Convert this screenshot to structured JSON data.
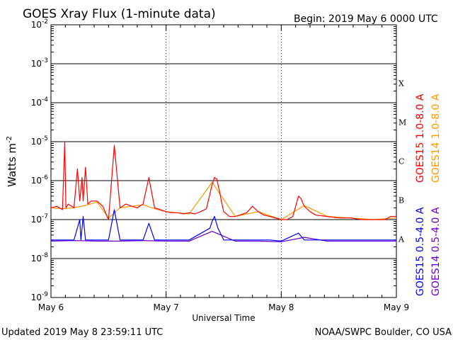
{
  "chart_data": {
    "type": "line",
    "title": "GOES Xray Flux (1-minute data)",
    "begin_label": "Begin:  2019 May 6 0000 UTC",
    "xlabel": "Universal Time",
    "ylabel": "Watts m",
    "ylabel_exp": "-2",
    "x_ticks": [
      "May 6",
      "May 7",
      "May 8",
      "May 9"
    ],
    "y_ticks": [
      {
        "base": "10",
        "exp": "-2"
      },
      {
        "base": "10",
        "exp": "-3"
      },
      {
        "base": "10",
        "exp": "-4"
      },
      {
        "base": "10",
        "exp": "-5"
      },
      {
        "base": "10",
        "exp": "-6"
      },
      {
        "base": "10",
        "exp": "-7"
      },
      {
        "base": "10",
        "exp": "-8"
      },
      {
        "base": "10",
        "exp": "-9"
      }
    ],
    "ylim": [
      1e-09,
      0.01
    ],
    "yscale": "log",
    "xlim_days": [
      0,
      3
    ],
    "flare_classes": [
      "X",
      "M",
      "C",
      "B",
      "A"
    ],
    "series": [
      {
        "name": "GOES15 1.0-8.0 A",
        "color": "#ff0000",
        "x": [
          0.0,
          0.05,
          0.1,
          0.12,
          0.13,
          0.15,
          0.2,
          0.23,
          0.25,
          0.27,
          0.28,
          0.3,
          0.32,
          0.35,
          0.4,
          0.45,
          0.5,
          0.55,
          0.6,
          0.65,
          0.7,
          0.75,
          0.8,
          0.85,
          0.9,
          0.95,
          1.0,
          1.05,
          1.1,
          1.15,
          1.2,
          1.25,
          1.3,
          1.35,
          1.38,
          1.4,
          1.42,
          1.44,
          1.46,
          1.48,
          1.5,
          1.55,
          1.6,
          1.7,
          1.75,
          1.8,
          1.85,
          1.9,
          2.0,
          2.05,
          2.1,
          2.15,
          2.17,
          2.2,
          2.25,
          2.3,
          2.4,
          2.5,
          2.6,
          2.7,
          2.8,
          2.85,
          2.9,
          2.95,
          3.0
        ],
        "y": [
          2e-07,
          2.2e-07,
          1.8e-07,
          1e-05,
          2e-07,
          2.5e-07,
          2e-07,
          2e-06,
          3e-07,
          1.2e-06,
          3e-07,
          2.2e-06,
          2.5e-07,
          3e-07,
          3e-07,
          2.2e-07,
          1e-07,
          8e-06,
          2e-07,
          2.5e-07,
          2.2e-07,
          2e-07,
          2.5e-07,
          1.2e-06,
          2e-07,
          1.8e-07,
          1.6e-07,
          1.5e-07,
          1.5e-07,
          1.4e-07,
          1.5e-07,
          1.4e-07,
          1.6e-07,
          1.9e-07,
          4.5e-07,
          8e-07,
          1.2e-06,
          1.1e-06,
          6e-07,
          3e-07,
          1.6e-07,
          1.2e-07,
          1.2e-07,
          1.5e-07,
          2.2e-07,
          1.6e-07,
          1.3e-07,
          1.2e-07,
          1e-07,
          1e-07,
          1.2e-07,
          4e-07,
          3.5e-07,
          2.2e-07,
          1.6e-07,
          1.3e-07,
          1.2e-07,
          1.1e-07,
          1.1e-07,
          1e-07,
          1e-07,
          1e-07,
          1e-07,
          1.2e-07,
          1.2e-07
        ]
      },
      {
        "name": "GOES14 1.0-8.0 A",
        "color": "#ff9900",
        "x": [
          0.0,
          0.1,
          0.2,
          0.3,
          0.4,
          0.5,
          0.6,
          0.7,
          0.8,
          0.9,
          1.0,
          1.2,
          1.4,
          1.6,
          1.8,
          2.0,
          2.2,
          2.4,
          2.6,
          2.8,
          3.0
        ],
        "y": [
          2e-07,
          1.9e-07,
          2e-07,
          2.3e-07,
          2.8e-07,
          1.1e-07,
          2e-07,
          2.2e-07,
          2.4e-07,
          1.9e-07,
          1.6e-07,
          1.4e-07,
          9e-07,
          1.2e-07,
          1.6e-07,
          1e-07,
          2.3e-07,
          1.2e-07,
          1.1e-07,
          1e-07,
          1.1e-07
        ]
      },
      {
        "name": "GOES15 0.5-4.0 A",
        "color": "#0000ff",
        "x": [
          0.0,
          0.1,
          0.2,
          0.25,
          0.26,
          0.28,
          0.3,
          0.35,
          0.4,
          0.5,
          0.55,
          0.6,
          0.7,
          0.8,
          0.85,
          0.9,
          1.0,
          1.2,
          1.38,
          1.4,
          1.42,
          1.45,
          1.48,
          1.5,
          1.55,
          1.7,
          1.9,
          2.0,
          2.15,
          2.2,
          2.3,
          2.5,
          2.7,
          2.9,
          3.0
        ],
        "y": [
          3e-08,
          3e-08,
          3e-08,
          1e-07,
          3e-08,
          1.2e-07,
          3e-08,
          3e-08,
          3e-08,
          3e-08,
          1.8e-07,
          3e-08,
          3e-08,
          3e-08,
          8e-08,
          3e-08,
          3e-08,
          3e-08,
          6e-08,
          9e-08,
          1.2e-07,
          6e-08,
          4e-08,
          3e-08,
          3e-08,
          3e-08,
          3e-08,
          2.8e-08,
          4.5e-08,
          3e-08,
          3e-08,
          3e-08,
          3e-08,
          3e-08,
          3e-08
        ]
      },
      {
        "name": "GOES14 0.5-4.0 A",
        "color": "#6600cc",
        "x": [
          0.0,
          0.2,
          0.4,
          0.6,
          0.8,
          1.0,
          1.2,
          1.4,
          1.6,
          1.8,
          2.0,
          2.2,
          2.4,
          2.6,
          2.8,
          3.0
        ],
        "y": [
          2.8e-08,
          2.9e-08,
          2.8e-08,
          2.8e-08,
          2.9e-08,
          2.8e-08,
          2.8e-08,
          5e-08,
          2.8e-08,
          2.8e-08,
          2.7e-08,
          3.5e-08,
          2.8e-08,
          2.8e-08,
          2.8e-08,
          2.8e-08
        ]
      }
    ]
  },
  "footer": {
    "updated": "Updated 2019 May  8 23:59:11 UTC",
    "credit": "NOAA/SWPC Boulder, CO USA"
  }
}
